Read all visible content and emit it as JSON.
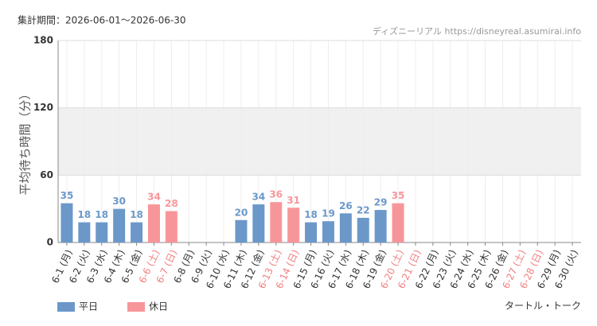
{
  "chart_data": {
    "type": "bar",
    "period": "集計期間：2026-06-01～2026-06-30",
    "source": "ディズニーリアル https://disneyreal.asumirai.info",
    "ylabel": "平均待ち時間（分）",
    "attraction": "タートル・トーク",
    "categories": [
      "6-1 (月)",
      "6-2 (火)",
      "6-3 (水)",
      "6-4 (木)",
      "6-5 (金)",
      "6-6 (土)",
      "6-7 (日)",
      "6-8 (月)",
      "6-9 (火)",
      "6-10 (水)",
      "6-11 (木)",
      "6-12 (金)",
      "6-13 (土)",
      "6-14 (日)",
      "6-15 (月)",
      "6-16 (火)",
      "6-17 (水)",
      "6-18 (木)",
      "6-19 (金)",
      "6-20 (土)",
      "6-21 (日)",
      "6-22 (月)",
      "6-23 (火)",
      "6-24 (水)",
      "6-25 (木)",
      "6-26 (金)",
      "6-27 (土)",
      "6-28 (日)",
      "6-29 (月)",
      "6-30 (火)"
    ],
    "category_colors": [
      "#333",
      "#333",
      "#333",
      "#333",
      "#333",
      "#f08080",
      "#f08080",
      "#333",
      "#333",
      "#333",
      "#333",
      "#333",
      "#f08080",
      "#f08080",
      "#333",
      "#333",
      "#333",
      "#333",
      "#333",
      "#f08080",
      "#f08080",
      "#333",
      "#333",
      "#333",
      "#333",
      "#333",
      "#f08080",
      "#f08080",
      "#333",
      "#333"
    ],
    "series": [
      {
        "name": "平日",
        "color": "#6b98c9",
        "values": [
          35,
          18,
          18,
          30,
          18,
          null,
          null,
          null,
          null,
          null,
          20,
          34,
          null,
          null,
          18,
          19,
          26,
          22,
          29,
          null,
          null,
          null,
          null,
          null,
          null,
          null,
          null,
          null,
          null,
          null
        ]
      },
      {
        "name": "休日",
        "color": "#f7969a",
        "values": [
          null,
          null,
          null,
          null,
          null,
          34,
          28,
          null,
          null,
          null,
          null,
          null,
          36,
          31,
          null,
          null,
          null,
          null,
          null,
          35,
          null,
          null,
          null,
          null,
          null,
          null,
          null,
          null,
          null,
          null
        ]
      }
    ],
    "ylim": [
      0,
      180
    ],
    "yticks": [
      0,
      60,
      120,
      180
    ],
    "shaded_band": [
      60,
      120
    ],
    "grid": true
  }
}
